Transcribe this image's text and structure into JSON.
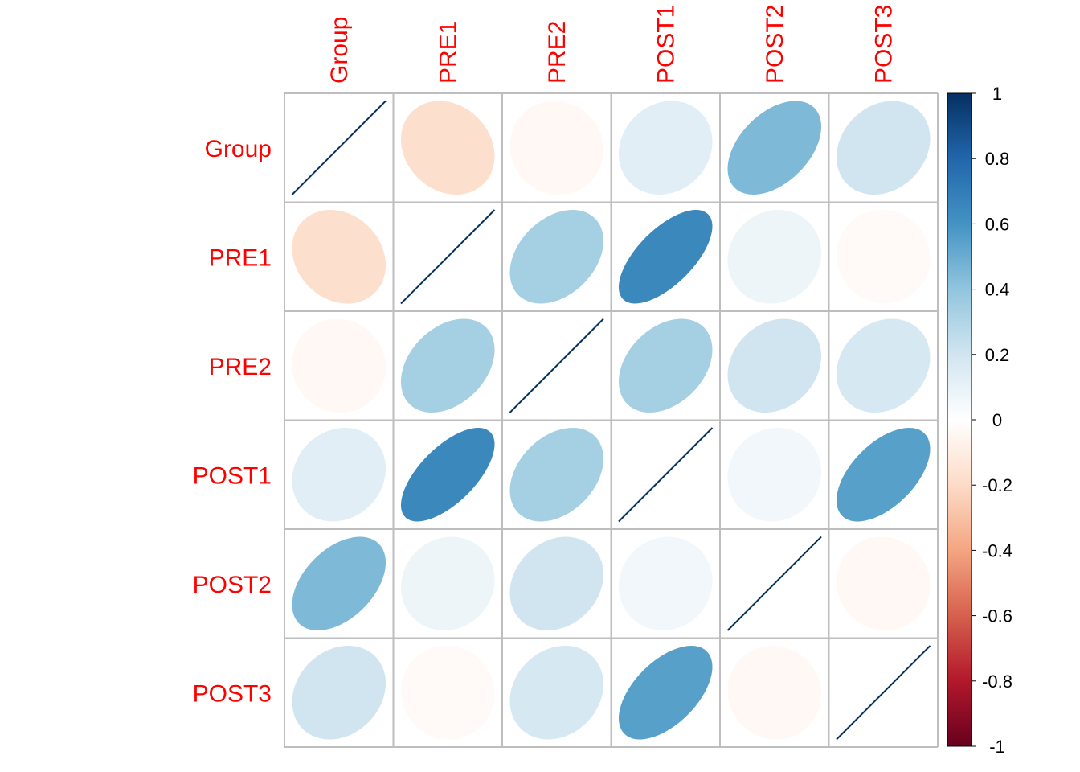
{
  "chart_data": {
    "type": "heatmap",
    "variables": [
      "Group",
      "PRE1",
      "PRE2",
      "POST1",
      "POST2",
      "POST3"
    ],
    "matrix": [
      [
        1.0,
        -0.18,
        -0.04,
        0.13,
        0.45,
        0.2
      ],
      [
        -0.18,
        1.0,
        0.34,
        0.65,
        0.08,
        -0.03
      ],
      [
        -0.04,
        0.34,
        1.0,
        0.34,
        0.2,
        0.18
      ],
      [
        0.13,
        0.65,
        0.34,
        1.0,
        0.06,
        0.55
      ],
      [
        0.45,
        0.08,
        0.2,
        0.06,
        1.0,
        -0.04
      ],
      [
        0.2,
        -0.03,
        0.18,
        0.55,
        -0.04,
        1.0
      ]
    ],
    "colorbar": {
      "range": [
        -1,
        1
      ],
      "ticks": [
        "1",
        "0.8",
        "0.6",
        "0.4",
        "0.2",
        "0",
        "-0.2",
        "-0.4",
        "-0.6",
        "-0.8",
        "-1"
      ],
      "palette": [
        "#67001F",
        "#B2182B",
        "#D6604D",
        "#F4A582",
        "#FDDBC7",
        "#FFFFFF",
        "#D1E5F0",
        "#92C5DE",
        "#4393C3",
        "#2166AC",
        "#053061"
      ]
    },
    "shape": "ellipse",
    "grid": true,
    "label_color": "#FF0000",
    "grid_color": "#BEBEBE"
  }
}
